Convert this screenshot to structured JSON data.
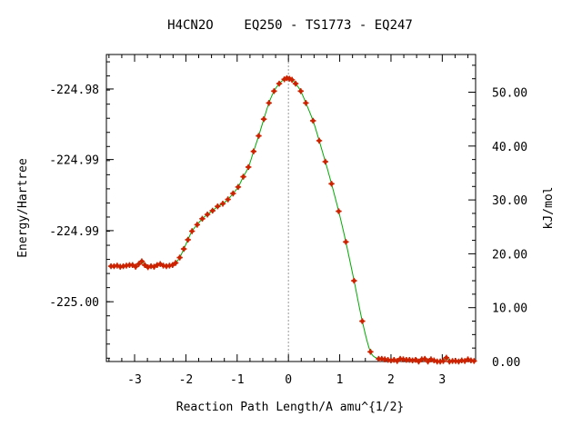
{
  "chart_data": {
    "type": "line",
    "title": "H4CN2O    EQ250 - TS1773 - EQ247",
    "xlabel": "Reaction Path Length/A amu^{1/2}",
    "ylabel_left": "Energy/Hartree",
    "ylabel_right": "kJ/mol",
    "xlim": [
      -3.55,
      3.65
    ],
    "right_ylim": [
      0.0,
      57.0
    ],
    "x_ticks": [
      -3,
      -2,
      -1,
      0,
      1,
      2,
      3
    ],
    "left_ticks": [
      {
        "label": "-224.98",
        "kj": 50.6
      },
      {
        "label": "-224.99",
        "kj": 37.5
      },
      {
        "label": "-224.99",
        "kj": 24.3
      },
      {
        "label": "-225.00",
        "kj": 11.1
      }
    ],
    "right_ticks": [
      "0.00",
      "10.00",
      "20.00",
      "30.00",
      "40.00",
      "50.00"
    ],
    "ts_marker_x": 0.0,
    "series": [
      {
        "line_color": "#00aa00",
        "marker_color": "#cc2200",
        "x": [
          -3.46,
          -3.4,
          -3.34,
          -3.28,
          -3.22,
          -3.16,
          -3.1,
          -3.04,
          -2.98,
          -2.92,
          -2.86,
          -2.8,
          -2.74,
          -2.68,
          -2.62,
          -2.56,
          -2.5,
          -2.44,
          -2.38,
          -2.32,
          -2.26,
          -2.2,
          -2.12,
          -2.04,
          -1.96,
          -1.88,
          -1.78,
          -1.68,
          -1.58,
          -1.48,
          -1.38,
          -1.28,
          -1.18,
          -1.08,
          -0.98,
          -0.88,
          -0.78,
          -0.68,
          -0.58,
          -0.48,
          -0.38,
          -0.28,
          -0.18,
          -0.08,
          -0.03,
          0.02,
          0.07,
          0.14,
          0.24,
          0.34,
          0.48,
          0.6,
          0.72,
          0.84,
          0.98,
          1.12,
          1.28,
          1.44,
          1.6,
          1.76,
          1.82,
          1.88,
          1.94,
          2.0,
          2.06,
          2.12,
          2.18,
          2.24,
          2.3,
          2.36,
          2.42,
          2.48,
          2.54,
          2.6,
          2.66,
          2.72,
          2.78,
          2.84,
          2.9,
          2.96,
          3.02,
          3.08,
          3.14,
          3.2,
          3.26,
          3.32,
          3.38,
          3.44,
          3.5,
          3.56,
          3.62
        ],
        "y": [
          17.7,
          17.7,
          17.8,
          17.6,
          17.7,
          17.8,
          17.9,
          17.9,
          17.6,
          18.1,
          18.6,
          17.9,
          17.5,
          17.7,
          17.6,
          17.9,
          18.1,
          17.8,
          17.7,
          17.8,
          17.9,
          18.3,
          19.3,
          20.9,
          22.6,
          24.2,
          25.4,
          26.5,
          27.3,
          28.0,
          28.8,
          29.3,
          30.1,
          31.2,
          32.4,
          34.3,
          36.1,
          39.0,
          41.9,
          45.0,
          48.0,
          50.2,
          51.6,
          52.4,
          52.6,
          52.5,
          52.3,
          51.6,
          50.2,
          48.0,
          44.7,
          41.0,
          37.1,
          33.0,
          27.9,
          22.2,
          15.0,
          7.5,
          1.8,
          0.5,
          0.5,
          0.4,
          0.3,
          0.2,
          0.3,
          0.1,
          0.5,
          0.4,
          0.3,
          0.3,
          0.2,
          0.3,
          0.0,
          0.4,
          0.5,
          0.0,
          0.4,
          0.2,
          0.0,
          0.0,
          0.1,
          0.7,
          0.0,
          0.1,
          0.1,
          0.0,
          0.2,
          0.1,
          0.4,
          0.2,
          0.1
        ]
      }
    ]
  }
}
